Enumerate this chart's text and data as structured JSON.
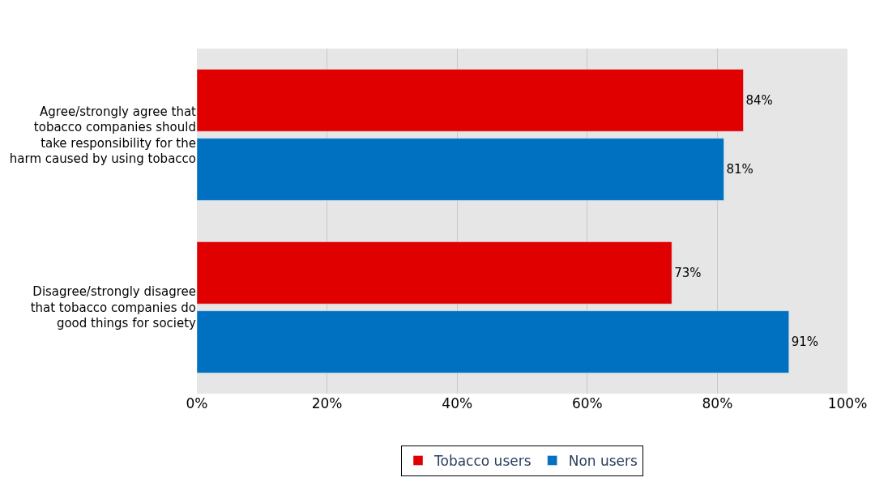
{
  "chart_data": {
    "type": "bar",
    "orientation": "horizontal",
    "categories": [
      "Agree/strongly agree that tobacco companies should take responsibility for the harm caused by using tobacco",
      "Disagree/strongly disagree that tobacco companies do good things for society"
    ],
    "series": [
      {
        "name": "Tobacco users",
        "color": "#e00000",
        "values": [
          84,
          73
        ],
        "value_labels": [
          "84%",
          "73%"
        ]
      },
      {
        "name": "Non users",
        "color": "#0070c0",
        "values": [
          81,
          91
        ],
        "value_labels": [
          "81%",
          "91%"
        ]
      }
    ],
    "xlim": [
      0,
      100
    ],
    "xticks": [
      {
        "value": 0,
        "label": "0%"
      },
      {
        "value": 20,
        "label": "20%"
      },
      {
        "value": 40,
        "label": "40%"
      },
      {
        "value": 60,
        "label": "60%"
      },
      {
        "value": 80,
        "label": "80%"
      },
      {
        "value": 100,
        "label": "100%"
      }
    ],
    "grid": "x",
    "legend": "bottom"
  }
}
